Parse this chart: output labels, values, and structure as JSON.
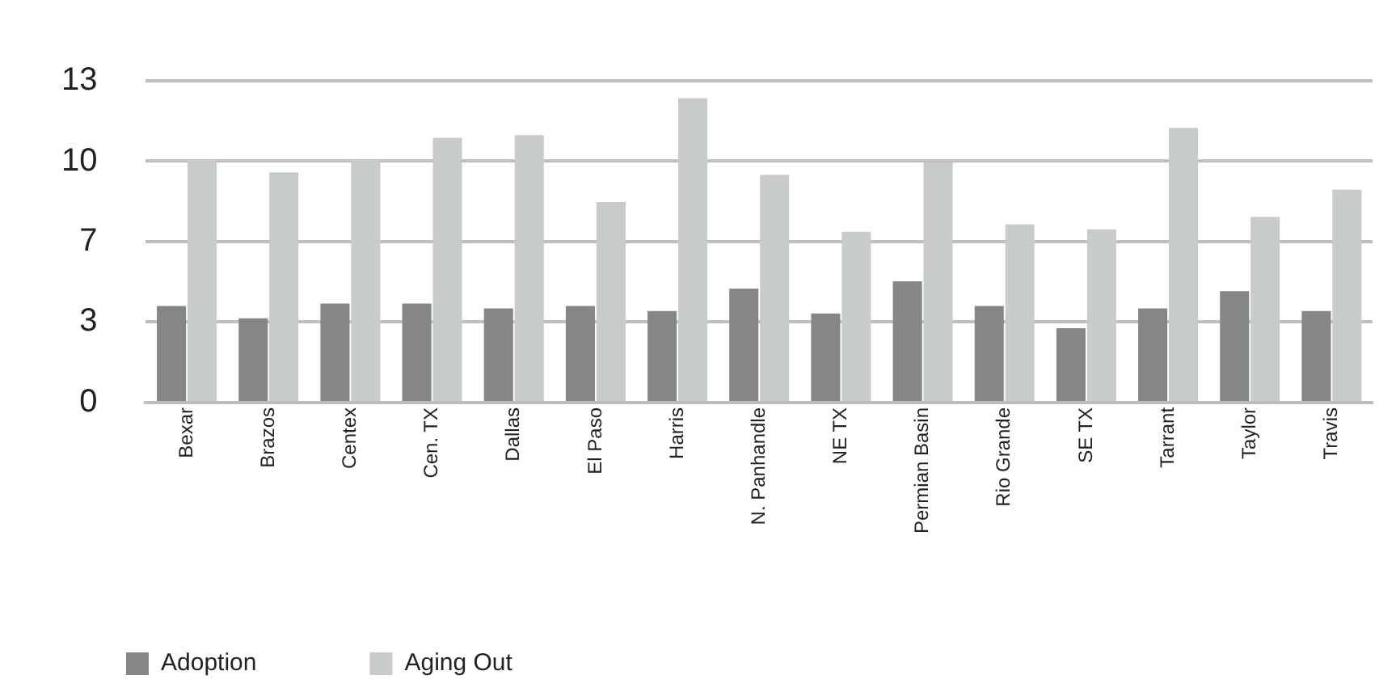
{
  "chart_data": {
    "type": "bar",
    "categories": [
      "Bexar",
      "Brazos",
      "Centex",
      "Cen. TX",
      "Dallas",
      "El Paso",
      "Harris",
      "N. Panhandle",
      "NE TX",
      "Permian Basin",
      "Rio Grande",
      "SE TX",
      "Tarrant",
      "Taylor",
      "Travis"
    ],
    "series": [
      {
        "name": "Adoption",
        "color": "#858687",
        "values": [
          3.9,
          3.4,
          4.0,
          4.0,
          3.8,
          3.9,
          3.7,
          4.6,
          3.6,
          4.9,
          3.9,
          3.0,
          3.8,
          4.5,
          3.7
        ]
      },
      {
        "name": "Aging Out",
        "color": "#c8cbcb",
        "values": [
          9.8,
          9.3,
          9.8,
          10.7,
          10.8,
          8.1,
          12.3,
          9.2,
          6.9,
          9.7,
          7.2,
          7.0,
          11.1,
          7.5,
          8.6
        ]
      }
    ],
    "ylim": [
      0,
      13
    ],
    "yticks": [
      0,
      {
        "value": 3.25,
        "label": "3"
      },
      {
        "value": 6.5,
        "label": "7"
      },
      {
        "value": 9.75,
        "label": "10"
      },
      13
    ],
    "grid": "y",
    "legend": "bottom left"
  }
}
